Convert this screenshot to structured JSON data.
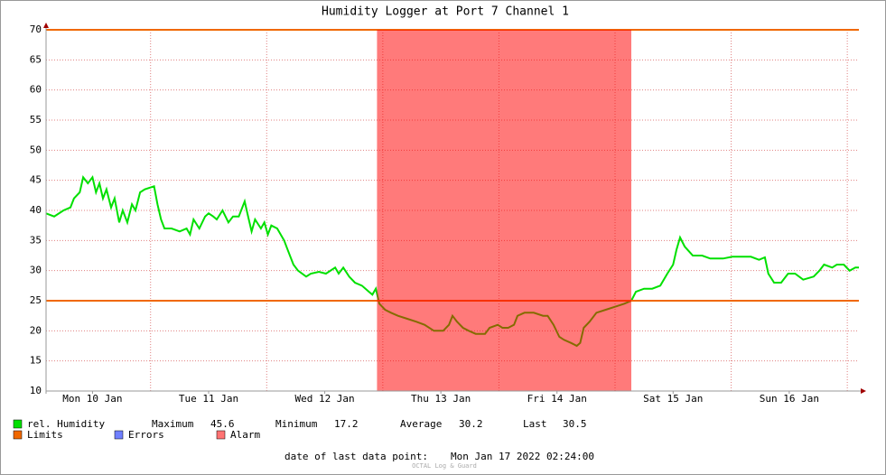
{
  "chart_data": {
    "type": "line",
    "title": "Humidity Logger at Port 7 Channel 1",
    "xlim": [
      0.1,
      7.1
    ],
    "xticks": [
      {
        "value": 0.5,
        "label": "Mon 10 Jan"
      },
      {
        "value": 1.5,
        "label": "Tue 11 Jan"
      },
      {
        "value": 2.5,
        "label": "Wed 12 Jan"
      },
      {
        "value": 3.5,
        "label": "Thu 13 Jan"
      },
      {
        "value": 4.5,
        "label": "Fri 14 Jan"
      },
      {
        "value": 5.5,
        "label": "Sat 15 Jan"
      },
      {
        "value": 6.5,
        "label": "Sun 16 Jan"
      }
    ],
    "xgrid": [
      1,
      2,
      3,
      4,
      5,
      6,
      7
    ],
    "ylim": [
      10,
      70
    ],
    "yticks": [
      10,
      15,
      20,
      25,
      30,
      35,
      40,
      45,
      50,
      55,
      60,
      65,
      70
    ],
    "grid": true,
    "series": [
      {
        "name": "rel. Humidity",
        "color": "#00e000",
        "x": [
          0.1,
          0.17,
          0.25,
          0.31,
          0.34,
          0.39,
          0.42,
          0.46,
          0.5,
          0.53,
          0.56,
          0.59,
          0.62,
          0.66,
          0.69,
          0.73,
          0.76,
          0.8,
          0.84,
          0.87,
          0.91,
          0.95,
          1.03,
          1.06,
          1.09,
          1.12,
          1.18,
          1.25,
          1.31,
          1.34,
          1.37,
          1.42,
          1.47,
          1.5,
          1.54,
          1.57,
          1.62,
          1.67,
          1.71,
          1.76,
          1.81,
          1.84,
          1.87,
          1.9,
          1.95,
          1.98,
          2.01,
          2.04,
          2.09,
          2.15,
          2.18,
          2.23,
          2.27,
          2.34,
          2.38,
          2.45,
          2.51,
          2.59,
          2.62,
          2.66,
          2.71,
          2.76,
          2.82,
          2.88,
          2.91,
          2.94,
          2.97,
          3.02,
          3.07,
          3.13,
          3.21,
          3.29,
          3.36,
          3.44,
          3.52,
          3.57,
          3.6,
          3.64,
          3.69,
          3.74,
          3.8,
          3.88,
          3.92,
          3.99,
          4.03,
          4.08,
          4.13,
          4.16,
          4.22,
          4.3,
          4.38,
          4.42,
          4.47,
          4.52,
          4.56,
          4.62,
          4.67,
          4.7,
          4.73,
          4.78,
          4.84,
          4.92,
          5.0,
          5.08,
          5.14,
          5.18,
          5.25,
          5.32,
          5.39,
          5.45,
          5.5,
          5.53,
          5.56,
          5.6,
          5.67,
          5.75,
          5.82,
          5.93,
          6.01,
          6.09,
          6.17,
          6.24,
          6.29,
          6.32,
          6.37,
          6.43,
          6.49,
          6.55,
          6.62,
          6.71,
          6.76,
          6.8,
          6.87,
          6.91,
          6.97,
          7.02,
          7.07,
          7.1
        ],
        "values": [
          39.5,
          39,
          40,
          40.5,
          42,
          43,
          45.5,
          44.5,
          45.5,
          43,
          44.5,
          42,
          43.5,
          40.5,
          42,
          38,
          40,
          38,
          41,
          40,
          43,
          43.5,
          44,
          41,
          38.5,
          37,
          37,
          36.5,
          37,
          36,
          38.5,
          37,
          39,
          39.5,
          39,
          38.5,
          40,
          38,
          39,
          39,
          41.5,
          39,
          36.5,
          38.5,
          37,
          38,
          36,
          37.5,
          37,
          35,
          33.5,
          31,
          30,
          29,
          29.5,
          29.8,
          29.5,
          30.5,
          29.5,
          30.5,
          29,
          28,
          27.5,
          26.5,
          26,
          27,
          24.5,
          23.5,
          23,
          22.5,
          22,
          21.5,
          21,
          20,
          20,
          21,
          22.5,
          21.5,
          20.5,
          20,
          19.5,
          19.5,
          20.5,
          21,
          20.5,
          20.5,
          21,
          22.5,
          23,
          23,
          22.5,
          22.5,
          21,
          19,
          18.5,
          18,
          17.5,
          18,
          20.5,
          21.5,
          23,
          23.5,
          24,
          24.5,
          25,
          26.5,
          27,
          27,
          27.5,
          29.5,
          31,
          33.5,
          35.5,
          34,
          32.5,
          32.5,
          32,
          32,
          32.3,
          32.3,
          32.3,
          31.8,
          32.2,
          29.5,
          28,
          28,
          29.5,
          29.5,
          28.5,
          29,
          30,
          31,
          30.5,
          31,
          31,
          30,
          30.5,
          30.5
        ]
      }
    ],
    "stats": [
      {
        "label": "Maximum",
        "value": 45.6
      },
      {
        "label": "Minimum",
        "value": 17.2
      },
      {
        "label": "Average",
        "value": 30.2
      },
      {
        "label": "Last",
        "value": 30.5
      }
    ],
    "limits": {
      "name": "Limits",
      "color": "#f06800",
      "values": [
        25,
        70
      ]
    },
    "errors": {
      "name": "Errors",
      "color": "#7080ff"
    },
    "alarm": {
      "name": "Alarm",
      "color": "#ff0000",
      "spans": [
        [
          2.95,
          5.14
        ]
      ]
    },
    "last_point_label": "date of last data point:",
    "last_point": "Mon Jan 17 2022 02:24:00",
    "watermark": "OCTAL Log & Guard"
  }
}
